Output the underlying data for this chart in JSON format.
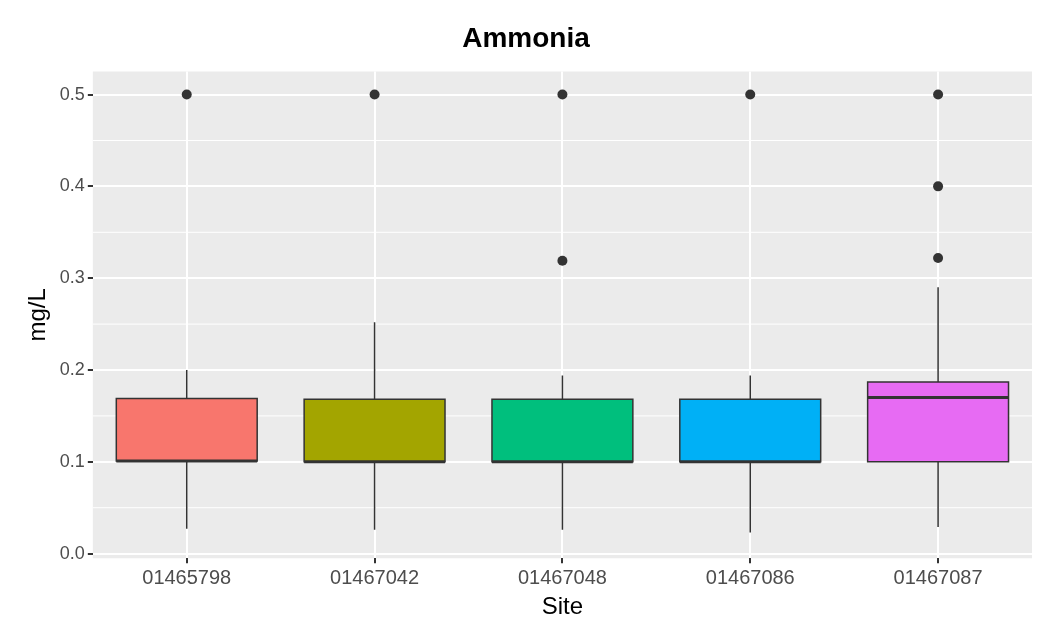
{
  "chart_data": {
    "type": "box",
    "title": "Ammonia",
    "xlabel": "Site",
    "ylabel": "mg/L",
    "categories": [
      "01465798",
      "01467042",
      "01467048",
      "01467086",
      "01467087"
    ],
    "colors": [
      "#f8766d",
      "#a3a500",
      "#00bf7d",
      "#00b0f6",
      "#e76bf3"
    ],
    "boxes": [
      {
        "low": 0.027,
        "q1": 0.101,
        "median": 0.101,
        "q3": 0.169,
        "high": 0.2,
        "outliers": [
          0.5
        ]
      },
      {
        "low": 0.026,
        "q1": 0.1,
        "median": 0.1,
        "q3": 0.168,
        "high": 0.252,
        "outliers": [
          0.5
        ]
      },
      {
        "low": 0.026,
        "q1": 0.1,
        "median": 0.1,
        "q3": 0.168,
        "high": 0.194,
        "outliers": [
          0.5,
          0.319
        ]
      },
      {
        "low": 0.023,
        "q1": 0.1,
        "median": 0.1,
        "q3": 0.168,
        "high": 0.194,
        "outliers": [
          0.5
        ]
      },
      {
        "low": 0.029,
        "q1": 0.1,
        "median": 0.17,
        "q3": 0.187,
        "high": 0.29,
        "outliers": [
          0.5,
          0.4,
          0.322
        ]
      }
    ],
    "ylim": [
      -0.005,
      0.525
    ],
    "yticks": [
      {
        "value": 0,
        "label": "0.0"
      },
      0.1,
      0.2,
      0.3,
      0.4,
      0.5
    ],
    "grid": true,
    "legend": false
  }
}
